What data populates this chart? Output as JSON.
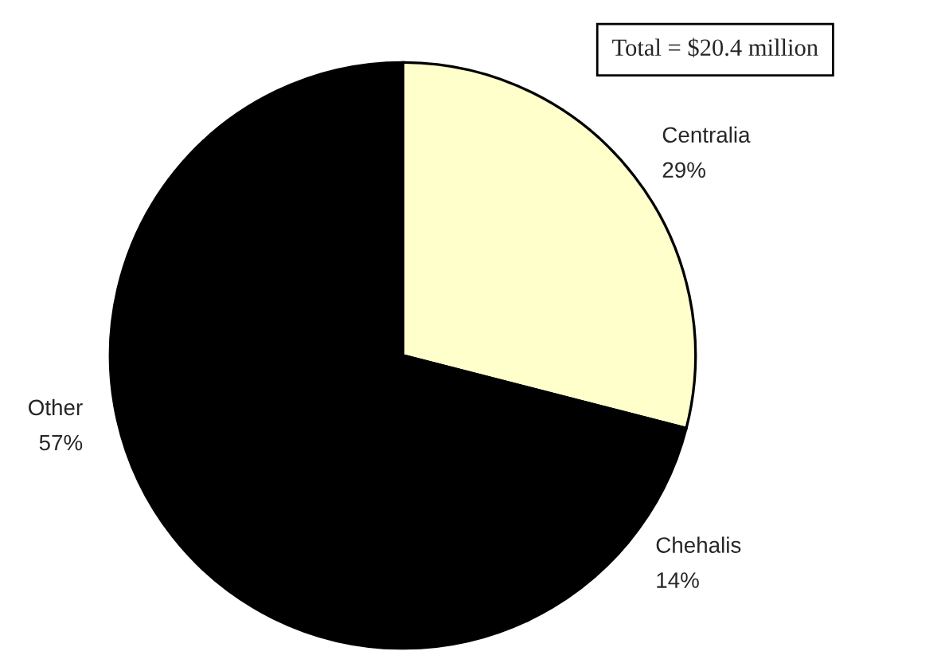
{
  "chart_data": {
    "type": "pie",
    "categories": [
      "Centralia",
      "Chehalis",
      "Other"
    ],
    "values": [
      29,
      14,
      57
    ],
    "value_labels": [
      "29%",
      "14%",
      "57%"
    ],
    "colors": [
      "#ffffcc",
      "#000000",
      "#000000"
    ],
    "annotations": [
      "Total = $20.4 million"
    ],
    "legend": false
  }
}
